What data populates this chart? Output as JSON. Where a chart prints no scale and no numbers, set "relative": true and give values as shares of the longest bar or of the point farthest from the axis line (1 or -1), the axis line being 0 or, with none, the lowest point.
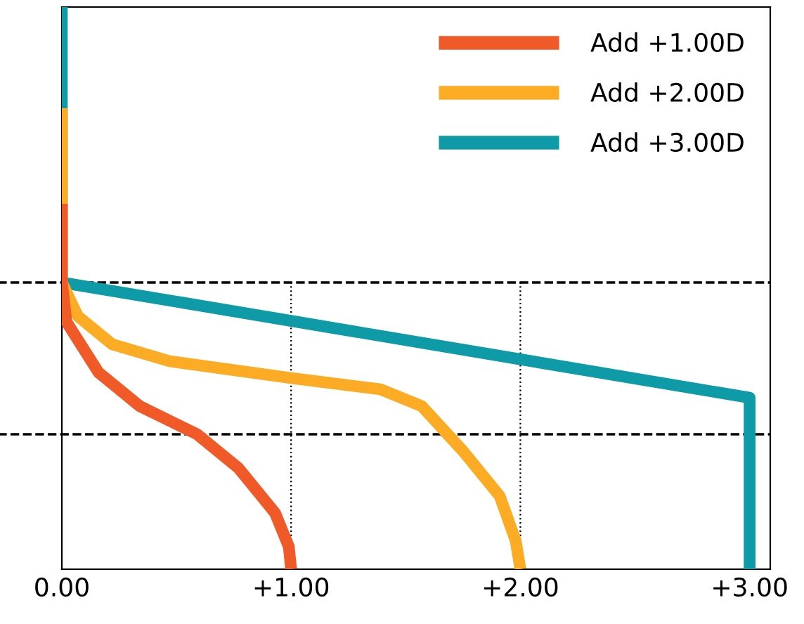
{
  "chart_data": {
    "type": "line",
    "relative": true,
    "series": [
      {
        "name": "Add +1.00D",
        "color": "#f05a28",
        "x": [
          0,
          0,
          0.02,
          0.16,
          0.34,
          0.59,
          0.77,
          0.93,
          0.99,
          1.0
        ],
        "values": [
          0.65,
          0.51,
          0.44,
          0.35,
          0.29,
          0.24,
          0.18,
          0.1,
          0.04,
          0
        ]
      },
      {
        "name": "Add +2.00D",
        "color": "#fcac24",
        "x": [
          0,
          0,
          0.07,
          0.22,
          0.47,
          1.0,
          1.39,
          1.57,
          1.75,
          1.91,
          1.98,
          2.0
        ],
        "values": [
          0.82,
          0.51,
          0.45,
          0.4,
          0.37,
          0.34,
          0.32,
          0.29,
          0.21,
          0.13,
          0.05,
          0
        ]
      },
      {
        "name": "Add +3.00D",
        "color": "#0e9aa7",
        "x": [
          0,
          0,
          3.0,
          3.0
        ],
        "values": [
          1.0,
          0.51,
          0.305,
          0
        ]
      }
    ],
    "xlim": [
      0,
      3.09
    ],
    "xticks": [
      {
        "value": 0,
        "label": "0.00"
      },
      {
        "value": 1,
        "label": "+1.00"
      },
      {
        "value": 2,
        "label": "+2.00"
      },
      {
        "value": 3,
        "label": "+3.00"
      }
    ],
    "tick_labels": "x",
    "ref_lines": [
      {
        "axis": "y",
        "value": 0.51,
        "line_style": "dashed",
        "color": "#000000"
      },
      {
        "axis": "y",
        "value": 0.24,
        "line_style": "dashed",
        "color": "#000000"
      },
      {
        "axis": "x",
        "value": 1,
        "line_style": "dotted",
        "color": "#000000"
      },
      {
        "axis": "x",
        "value": 2,
        "line_style": "dotted",
        "color": "#000000"
      }
    ],
    "legend": "top right",
    "grid": false,
    "marker": "none",
    "line_style": "solid"
  }
}
